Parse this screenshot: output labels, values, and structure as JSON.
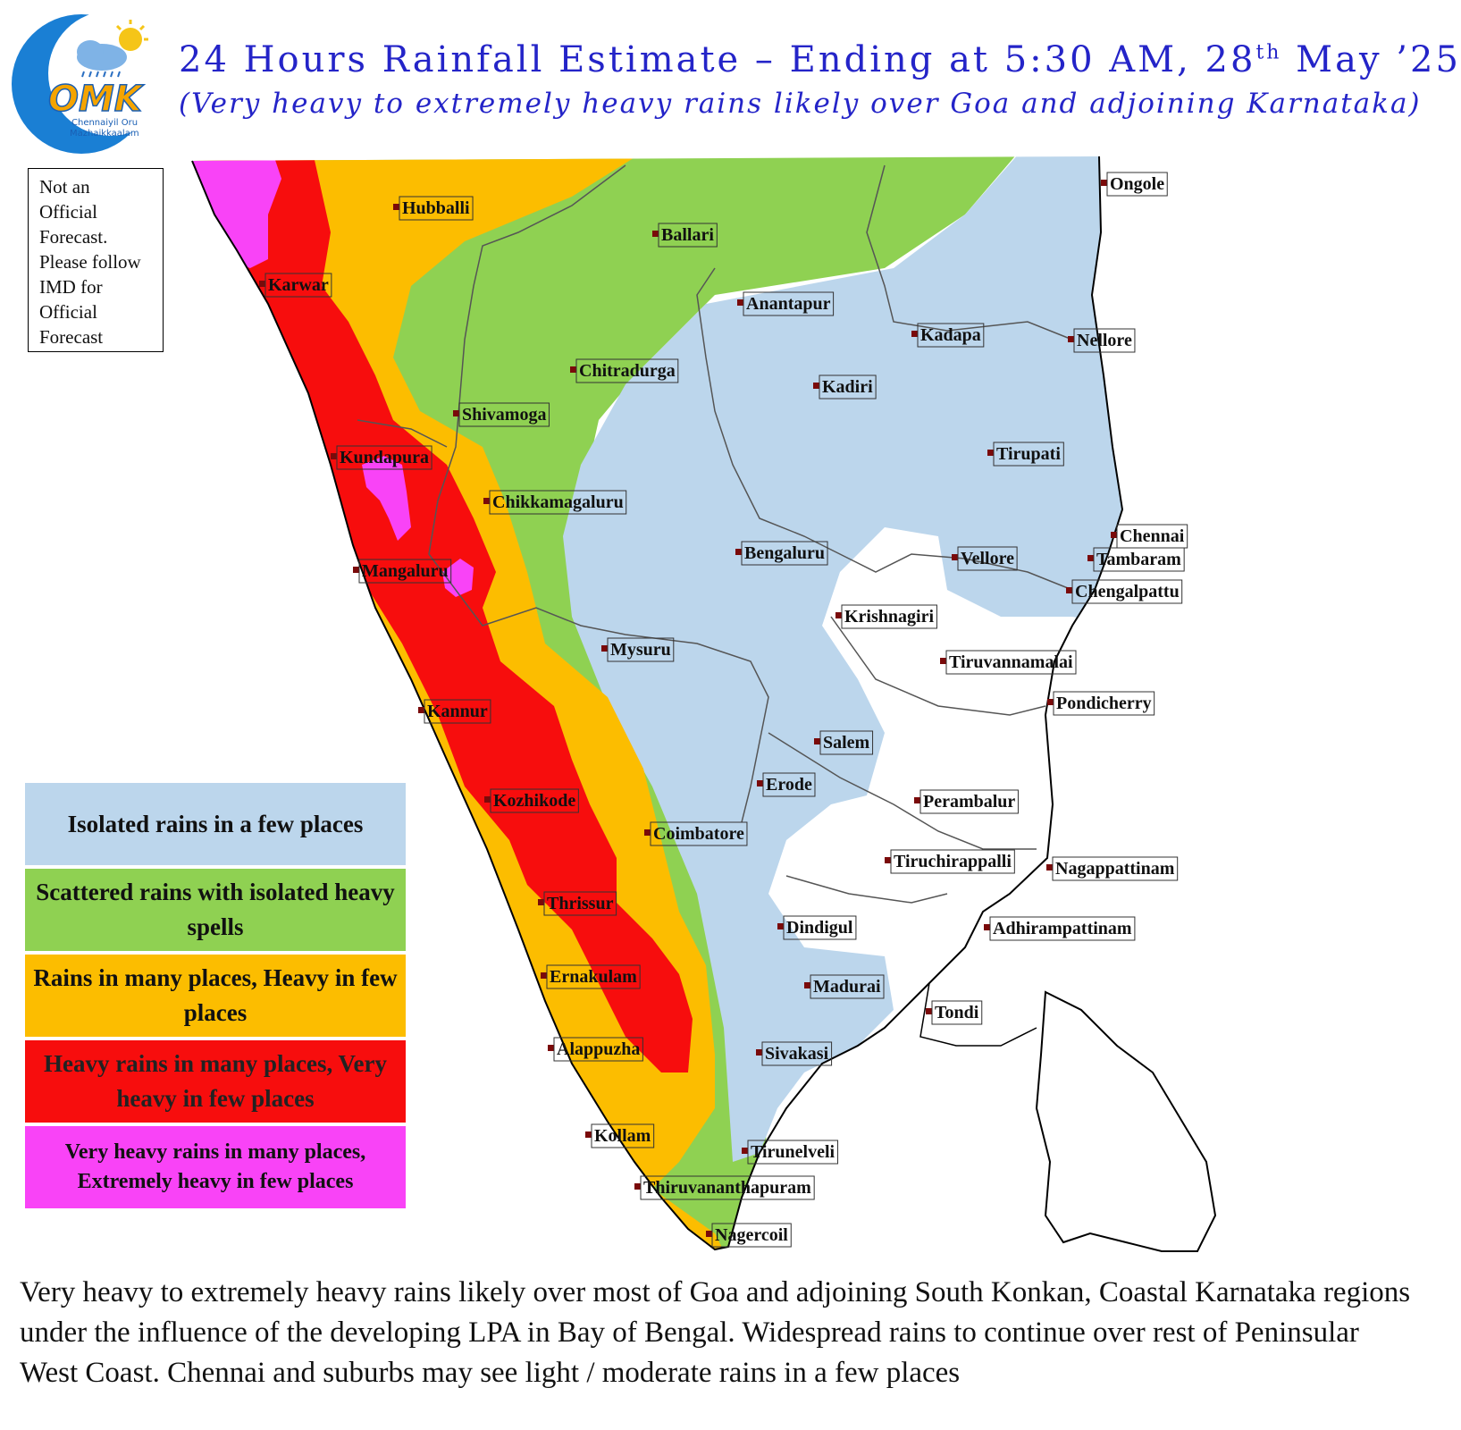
{
  "logo": {
    "text": "OMK",
    "subtext_line1": "Chennaiyil Oru",
    "subtext_line2": "Mazhaikkaalam"
  },
  "header": {
    "title_main": "24 Hours Rainfall Estimate – Ending at 5:30 AM, 28",
    "title_sup": "th",
    "title_end": " May ’25",
    "subtitle": "(Very heavy to extremely heavy rains likely over Goa and adjoining Karnataka)"
  },
  "disclaimer": {
    "lines": [
      "Not an",
      "Official",
      "Forecast.",
      "Please follow",
      "IMD for",
      "Official",
      "Forecast"
    ]
  },
  "legend": {
    "items": [
      {
        "label": "Isolated rains in a few places",
        "color": "#bcd6ec"
      },
      {
        "label": "Scattered rains with isolated heavy spells",
        "color": "#8fd152"
      },
      {
        "label": "Rains in many places, Heavy in few places",
        "color": "#fcbd00"
      },
      {
        "label": "Heavy rains in many places, Very heavy in few places",
        "color": "#f70d0d"
      },
      {
        "label": "Very heavy rains in many places, Extremely heavy in few places",
        "color": "#f943f7"
      }
    ]
  },
  "cities": [
    {
      "name": "Hubballi"
    },
    {
      "name": "Ballari"
    },
    {
      "name": "Ongole"
    },
    {
      "name": "Karwar"
    },
    {
      "name": "Anantapur"
    },
    {
      "name": "Kadapa"
    },
    {
      "name": "Nellore"
    },
    {
      "name": "Chitradurga"
    },
    {
      "name": "Kadiri"
    },
    {
      "name": "Shivamoga"
    },
    {
      "name": "Tirupati"
    },
    {
      "name": "Kundapura"
    },
    {
      "name": "Chikkamagaluru"
    },
    {
      "name": "Chennai"
    },
    {
      "name": "Bengaluru"
    },
    {
      "name": "Vellore"
    },
    {
      "name": "Tambaram"
    },
    {
      "name": "Mangaluru"
    },
    {
      "name": "Chengalpattu"
    },
    {
      "name": "Krishnagiri"
    },
    {
      "name": "Mysuru"
    },
    {
      "name": "Tiruvannamalai"
    },
    {
      "name": "Pondicherry"
    },
    {
      "name": "Kannur"
    },
    {
      "name": "Salem"
    },
    {
      "name": "Erode"
    },
    {
      "name": "Perambalur"
    },
    {
      "name": "Kozhikode"
    },
    {
      "name": "Coimbatore"
    },
    {
      "name": "Tiruchirappalli"
    },
    {
      "name": "Nagappattinam"
    },
    {
      "name": "Thrissur"
    },
    {
      "name": "Dindigul"
    },
    {
      "name": "Adhirampattinam"
    },
    {
      "name": "Ernakulam"
    },
    {
      "name": "Madurai"
    },
    {
      "name": "Tondi"
    },
    {
      "name": "Alappuzha"
    },
    {
      "name": "Sivakasi"
    },
    {
      "name": "Kollam"
    },
    {
      "name": "Tirunelveli"
    },
    {
      "name": "Thiruvananthapuram"
    },
    {
      "name": "Nagercoil"
    }
  ],
  "caption": "Very heavy to extremely heavy rains likely over most of Goa and adjoining South Konkan, Coastal Karnataka regions under the influence of the developing LPA in Bay of Bengal. Widespread rains to continue over rest of Peninsular West Coast. Chennai and suburbs may see light / moderate rains in a few places"
}
